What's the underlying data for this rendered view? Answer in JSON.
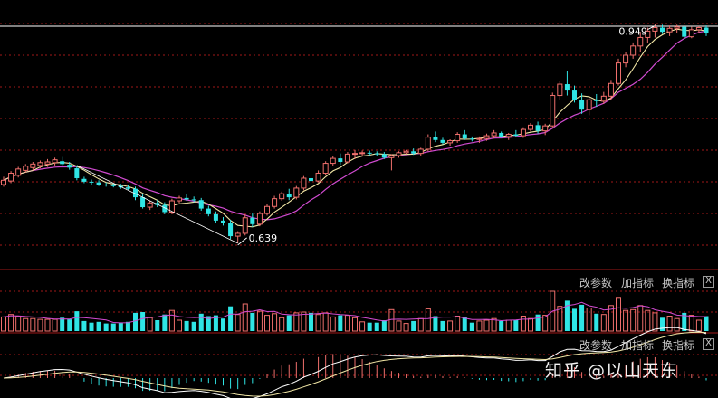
{
  "colors": {
    "up": "#ef6f6c",
    "down": "#2fe5e5",
    "ma_short": "#f2e7a6",
    "ma_long": "#d24bd2",
    "grid": "#a01818",
    "current_line": "#ffffff",
    "text": "#c8c8c8"
  },
  "panels": {
    "volume": {
      "buttons": [
        "改参数",
        "加指标",
        "换指标"
      ],
      "close": "X"
    },
    "indicator": {
      "buttons": [
        "改参数",
        "加指标",
        "换指标"
      ],
      "close": "X"
    }
  },
  "watermark": "知乎 @以山天东",
  "chart_data": {
    "type": "candlestick",
    "title": "",
    "price_axis_range": [
      0.612,
      0.96
    ],
    "annotations": [
      {
        "label": "0.639",
        "value": 0.639,
        "type": "low"
      },
      {
        "label": "0.949",
        "value": 0.949,
        "type": "high"
      }
    ],
    "current_price_line": 0.946,
    "series": [
      {
        "name": "",
        "type": "candle",
        "description": "OHLC approx"
      }
    ],
    "ohlc": [
      [
        0.722,
        0.733,
        0.719,
        0.728
      ],
      [
        0.727,
        0.741,
        0.724,
        0.738
      ],
      [
        0.735,
        0.747,
        0.732,
        0.744
      ],
      [
        0.742,
        0.751,
        0.739,
        0.748
      ],
      [
        0.746,
        0.754,
        0.742,
        0.751
      ],
      [
        0.749,
        0.756,
        0.745,
        0.753
      ],
      [
        0.751,
        0.758,
        0.747,
        0.754
      ],
      [
        0.753,
        0.76,
        0.749,
        0.757
      ],
      [
        0.755,
        0.761,
        0.748,
        0.751
      ],
      [
        0.75,
        0.754,
        0.743,
        0.746
      ],
      [
        0.745,
        0.749,
        0.728,
        0.731
      ],
      [
        0.73,
        0.733,
        0.724,
        0.726
      ],
      [
        0.726,
        0.729,
        0.722,
        0.725
      ],
      [
        0.725,
        0.728,
        0.72,
        0.722
      ],
      [
        0.722,
        0.725,
        0.719,
        0.721
      ],
      [
        0.721,
        0.724,
        0.718,
        0.72
      ],
      [
        0.72,
        0.723,
        0.716,
        0.718
      ],
      [
        0.718,
        0.722,
        0.714,
        0.716
      ],
      [
        0.716,
        0.719,
        0.7,
        0.704
      ],
      [
        0.704,
        0.708,
        0.688,
        0.69
      ],
      [
        0.69,
        0.699,
        0.686,
        0.696
      ],
      [
        0.696,
        0.7,
        0.69,
        0.693
      ],
      [
        0.693,
        0.697,
        0.68,
        0.683
      ],
      [
        0.683,
        0.702,
        0.68,
        0.699
      ],
      [
        0.699,
        0.706,
        0.696,
        0.703
      ],
      [
        0.703,
        0.708,
        0.699,
        0.701
      ],
      [
        0.701,
        0.705,
        0.697,
        0.7
      ],
      [
        0.7,
        0.703,
        0.685,
        0.688
      ],
      [
        0.688,
        0.692,
        0.677,
        0.68
      ],
      [
        0.68,
        0.684,
        0.668,
        0.671
      ],
      [
        0.671,
        0.676,
        0.664,
        0.668
      ],
      [
        0.668,
        0.672,
        0.645,
        0.649
      ],
      [
        0.649,
        0.656,
        0.639,
        0.653
      ],
      [
        0.653,
        0.68,
        0.65,
        0.675
      ],
      [
        0.675,
        0.681,
        0.662,
        0.666
      ],
      [
        0.666,
        0.684,
        0.663,
        0.681
      ],
      [
        0.681,
        0.694,
        0.678,
        0.691
      ],
      [
        0.691,
        0.706,
        0.688,
        0.702
      ],
      [
        0.702,
        0.712,
        0.699,
        0.709
      ],
      [
        0.709,
        0.716,
        0.7,
        0.704
      ],
      [
        0.704,
        0.72,
        0.701,
        0.717
      ],
      [
        0.717,
        0.734,
        0.714,
        0.731
      ],
      [
        0.731,
        0.739,
        0.72,
        0.727
      ],
      [
        0.727,
        0.742,
        0.725,
        0.738
      ],
      [
        0.738,
        0.755,
        0.736,
        0.752
      ],
      [
        0.752,
        0.762,
        0.748,
        0.759
      ],
      [
        0.759,
        0.766,
        0.75,
        0.754
      ],
      [
        0.754,
        0.768,
        0.752,
        0.765
      ],
      [
        0.765,
        0.771,
        0.758,
        0.766
      ],
      [
        0.766,
        0.77,
        0.762,
        0.767
      ],
      [
        0.767,
        0.77,
        0.763,
        0.766
      ],
      [
        0.766,
        0.769,
        0.762,
        0.765
      ],
      [
        0.765,
        0.768,
        0.758,
        0.76
      ],
      [
        0.76,
        0.765,
        0.742,
        0.763
      ],
      [
        0.763,
        0.769,
        0.76,
        0.767
      ],
      [
        0.767,
        0.771,
        0.765,
        0.769
      ],
      [
        0.769,
        0.773,
        0.764,
        0.766
      ],
      [
        0.766,
        0.774,
        0.762,
        0.772
      ],
      [
        0.772,
        0.793,
        0.769,
        0.789
      ],
      [
        0.789,
        0.797,
        0.782,
        0.785
      ],
      [
        0.785,
        0.788,
        0.779,
        0.781
      ],
      [
        0.781,
        0.786,
        0.777,
        0.784
      ],
      [
        0.784,
        0.796,
        0.781,
        0.793
      ],
      [
        0.793,
        0.799,
        0.785,
        0.787
      ],
      [
        0.787,
        0.79,
        0.783,
        0.786
      ],
      [
        0.786,
        0.79,
        0.781,
        0.787
      ],
      [
        0.787,
        0.794,
        0.784,
        0.791
      ],
      [
        0.791,
        0.799,
        0.787,
        0.795
      ],
      [
        0.795,
        0.797,
        0.788,
        0.79
      ],
      [
        0.79,
        0.795,
        0.785,
        0.793
      ],
      [
        0.793,
        0.799,
        0.789,
        0.791
      ],
      [
        0.791,
        0.803,
        0.788,
        0.8
      ],
      [
        0.8,
        0.809,
        0.797,
        0.806
      ],
      [
        0.806,
        0.811,
        0.794,
        0.798
      ],
      [
        0.798,
        0.808,
        0.792,
        0.805
      ],
      [
        0.805,
        0.852,
        0.802,
        0.848
      ],
      [
        0.848,
        0.869,
        0.842,
        0.864
      ],
      [
        0.864,
        0.882,
        0.848,
        0.855
      ],
      [
        0.855,
        0.862,
        0.838,
        0.842
      ],
      [
        0.842,
        0.851,
        0.822,
        0.828
      ],
      [
        0.828,
        0.845,
        0.82,
        0.842
      ],
      [
        0.842,
        0.85,
        0.832,
        0.84
      ],
      [
        0.84,
        0.853,
        0.836,
        0.847
      ],
      [
        0.847,
        0.87,
        0.842,
        0.865
      ],
      [
        0.865,
        0.9,
        0.862,
        0.894
      ],
      [
        0.894,
        0.91,
        0.888,
        0.905
      ],
      [
        0.905,
        0.923,
        0.9,
        0.918
      ],
      [
        0.918,
        0.938,
        0.91,
        0.93
      ],
      [
        0.93,
        0.944,
        0.922,
        0.939
      ],
      [
        0.939,
        0.949,
        0.93,
        0.944
      ],
      [
        0.944,
        0.948,
        0.935,
        0.938
      ],
      [
        0.938,
        0.947,
        0.932,
        0.943
      ],
      [
        0.943,
        0.948,
        0.936,
        0.945
      ],
      [
        0.945,
        0.947,
        0.928,
        0.931
      ],
      [
        0.931,
        0.945,
        0.929,
        0.941
      ],
      [
        0.941,
        0.946,
        0.936,
        0.944
      ],
      [
        0.944,
        0.947,
        0.932,
        0.936
      ]
    ]
  }
}
